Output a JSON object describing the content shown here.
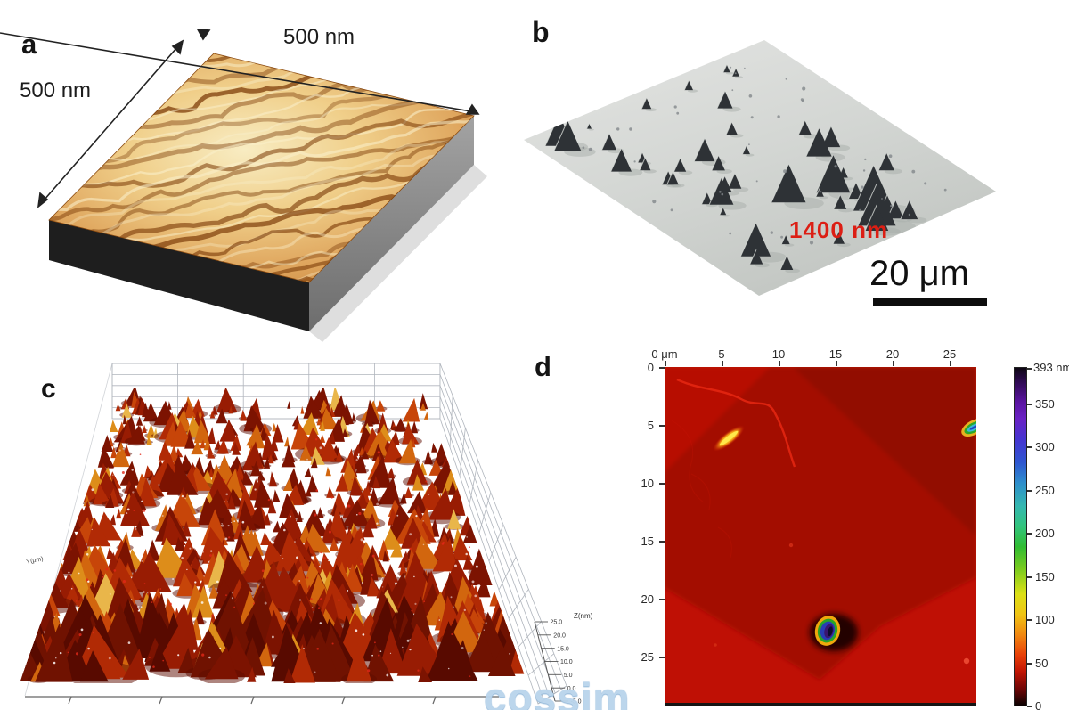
{
  "panels": {
    "a": {
      "label": "a",
      "scale_top": "500 nm",
      "scale_left": "500 nm"
    },
    "b": {
      "label": "b",
      "height_annotation": "1400 nm",
      "scale_bar_label": "20 μm"
    },
    "c": {
      "label": "c",
      "z_axis_title": "Z(nm)",
      "z_axis_ticks": [
        "25.0",
        "20.0",
        "15.0",
        "10.0",
        "5.0",
        "0.0",
        "-5.0"
      ],
      "y_axis_label": "Y(μm)"
    },
    "d": {
      "label": "d",
      "x_axis_ticks": [
        "0 μm",
        "5",
        "10",
        "15",
        "20",
        "25"
      ],
      "y_axis_ticks": [
        "0",
        "5",
        "10",
        "15",
        "20",
        "25"
      ],
      "colorbar_max_label": "393 nm",
      "colorbar_ticks": [
        "350",
        "300",
        "250",
        "200",
        "150",
        "100",
        "50",
        "0"
      ]
    }
  },
  "watermark": "cossim",
  "colors": {
    "annotation_red": "#dc1e14",
    "watermark_blue": "#b9d4ec",
    "panel_a_surface_orange": "#e8b264",
    "panel_b_plane_gray": "#d6d8d6",
    "panel_c_surface_red": "#b22000",
    "panel_d_base_red": "#bb0e04",
    "colorbar_top": "#0d0612",
    "colorbar_bottom": "#0a0202"
  }
}
